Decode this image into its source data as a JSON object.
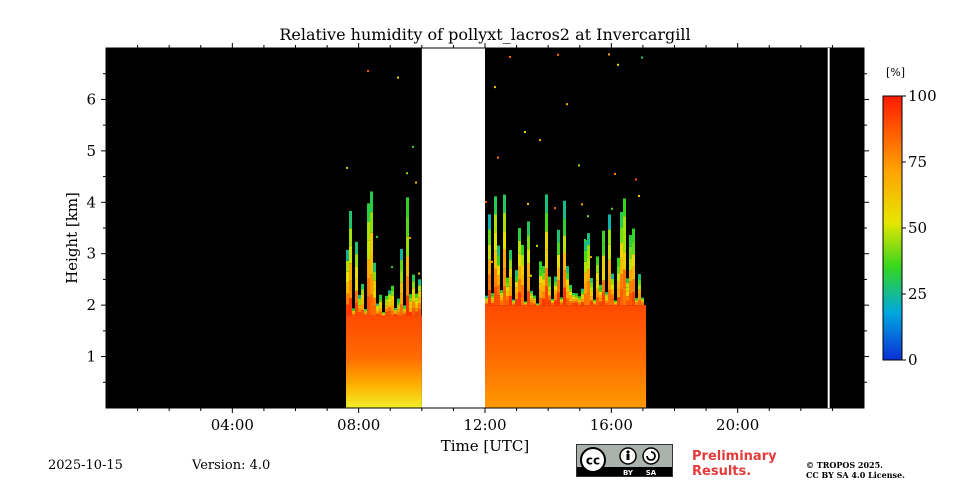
{
  "chart_data": {
    "type": "heatmap",
    "title": "Relative humidity of pollyxt_lacros2 at Invercargill",
    "xlabel": "Time [UTC]",
    "ylabel": "Height [km]",
    "x_ticks": [
      "04:00",
      "08:00",
      "12:00",
      "16:00",
      "20:00"
    ],
    "x_tick_hours": [
      4,
      8,
      12,
      16,
      20
    ],
    "xlim_hours": [
      0,
      24
    ],
    "y_ticks": [
      "1",
      "2",
      "3",
      "4",
      "5",
      "6"
    ],
    "y_tick_values": [
      1,
      2,
      3,
      4,
      5,
      6
    ],
    "ylim_km": [
      0,
      7
    ],
    "colorbar": {
      "unit": "[%]",
      "ticks": [
        "0",
        "25",
        "50",
        "75",
        "100"
      ],
      "tick_values": [
        0,
        25,
        50,
        75,
        100
      ],
      "range": [
        0,
        100
      ],
      "colormap": "jet"
    },
    "no_data_color": "#000000",
    "gap_color": "#ffffff",
    "data_periods": [
      {
        "start_hour": 7.6,
        "end_hour": 10.0,
        "cloud_top_km": 1.8,
        "max_height_km": 7.0
      },
      {
        "start_hour": 12.0,
        "end_hour": 17.1,
        "cloud_top_km": 2.0,
        "max_height_km": 7.0
      }
    ],
    "missing_periods": [
      {
        "start_hour": 10.0,
        "end_hour": 12.0
      }
    ]
  },
  "footer": {
    "date": "2025-10-15",
    "version": "Version: 4.0",
    "license_badge": "CC BY SA",
    "preliminary_line1": "Preliminary",
    "preliminary_line2": "Results.",
    "copyright_line1": "© TROPOS 2025.",
    "copyright_line2": "CC BY SA 4.0 License."
  },
  "colors": {
    "preliminary": "#e33b3b",
    "badge_bg": "#aab2ab"
  }
}
